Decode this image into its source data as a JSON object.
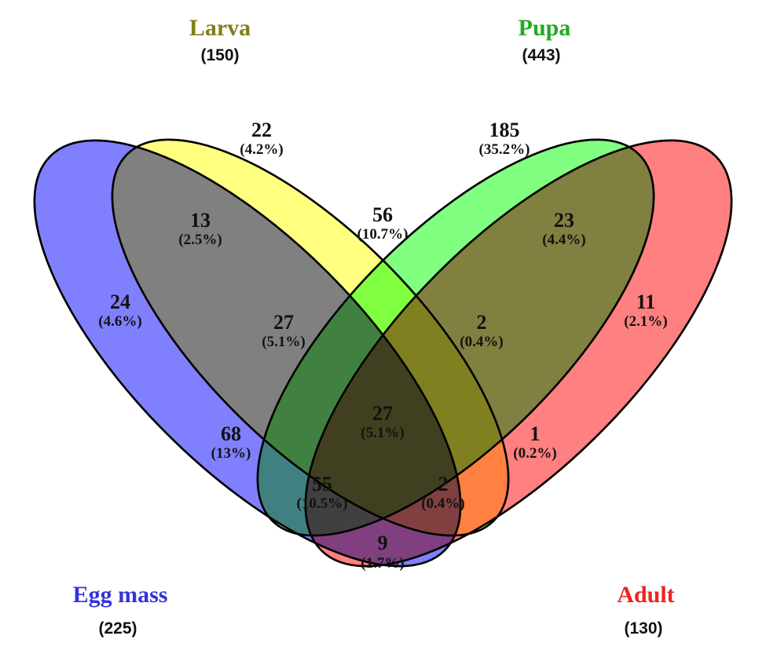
{
  "sets": [
    {
      "id": "egg",
      "name": "Egg mass",
      "total": "(225)",
      "color": "#8080FF",
      "label_color": "#3333DD"
    },
    {
      "id": "larva",
      "name": "Larva",
      "total": "(150)",
      "color": "#FFFF80",
      "label_color": "#7F7F1A"
    },
    {
      "id": "pupa",
      "name": "Pupa",
      "total": "(443)",
      "color": "#80FF80",
      "label_color": "#22AA22"
    },
    {
      "id": "adult",
      "name": "Adult",
      "total": "(130)",
      "color": "#FF8080",
      "label_color": "#EE2222"
    }
  ],
  "regions": [
    {
      "sets": [
        "larva"
      ],
      "count": "22",
      "percent": "(4.2%)"
    },
    {
      "sets": [
        "pupa"
      ],
      "count": "185",
      "percent": "(35.2%)"
    },
    {
      "sets": [
        "egg",
        "larva"
      ],
      "count": "13",
      "percent": "(2.5%)"
    },
    {
      "sets": [
        "larva",
        "pupa"
      ],
      "count": "56",
      "percent": "(10.7%)"
    },
    {
      "sets": [
        "pupa",
        "adult"
      ],
      "count": "23",
      "percent": "(4.4%)"
    },
    {
      "sets": [
        "egg"
      ],
      "count": "24",
      "percent": "(4.6%)"
    },
    {
      "sets": [
        "egg",
        "larva",
        "pupa"
      ],
      "count": "27",
      "percent": "(5.1%)"
    },
    {
      "sets": [
        "larva",
        "pupa",
        "adult"
      ],
      "count": "2",
      "percent": "(0.4%)"
    },
    {
      "sets": [
        "adult"
      ],
      "count": "11",
      "percent": "(2.1%)"
    },
    {
      "sets": [
        "egg",
        "larva",
        "pupa",
        "adult"
      ],
      "count": "27",
      "percent": "(5.1%)"
    },
    {
      "sets": [
        "egg",
        "pupa"
      ],
      "count": "68",
      "percent": "(13%)"
    },
    {
      "sets": [
        "larva",
        "adult"
      ],
      "count": "1",
      "percent": "(0.2%)"
    },
    {
      "sets": [
        "egg",
        "pupa",
        "adult"
      ],
      "count": "55",
      "percent": "(10.5%)"
    },
    {
      "sets": [
        "egg",
        "larva",
        "adult"
      ],
      "count": "2",
      "percent": "(0.4%)"
    },
    {
      "sets": [
        "egg",
        "adult"
      ],
      "count": "9",
      "percent": "(1.7%)"
    }
  ]
}
